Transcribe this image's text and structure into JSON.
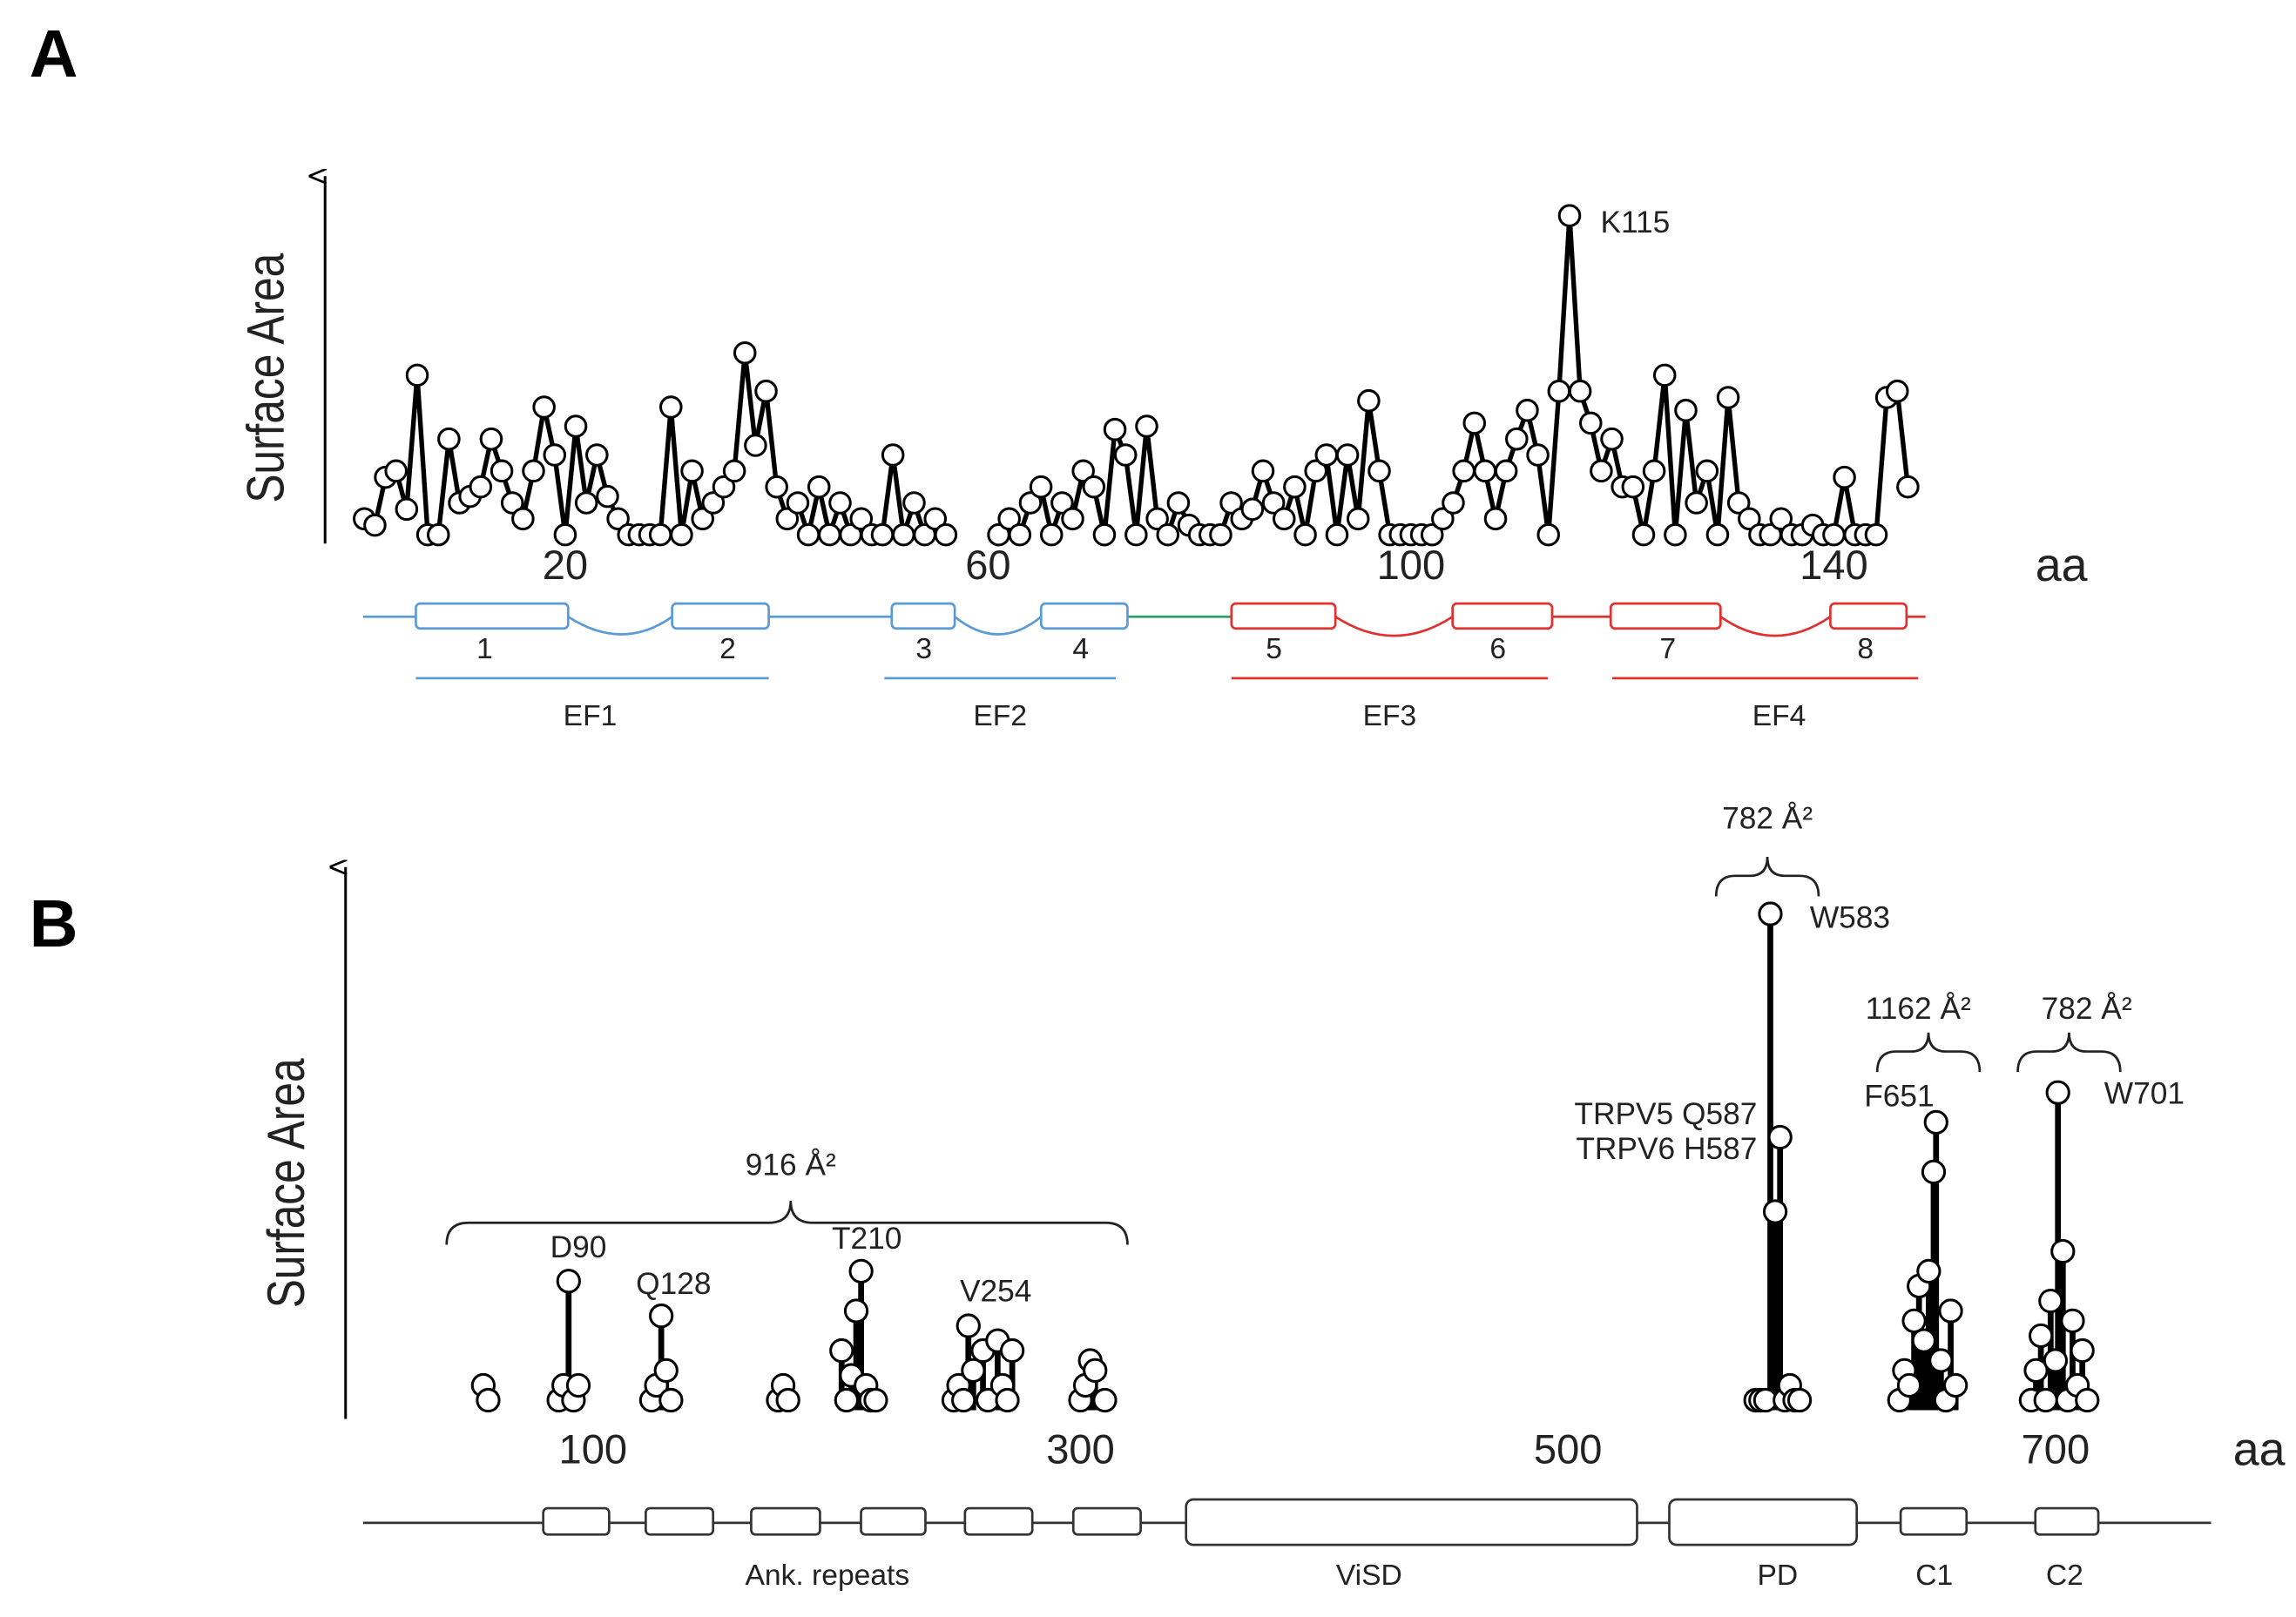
{
  "chart_data": [
    {
      "type": "line",
      "label": "A",
      "ylabel": "Surface Area",
      "xlabel": "aa",
      "x": [
        1,
        2,
        3,
        4,
        5,
        6,
        7,
        8,
        9,
        10,
        11,
        12,
        13,
        14,
        15,
        16,
        17,
        18,
        19,
        20,
        21,
        22,
        23,
        24,
        25,
        26,
        27,
        28,
        29,
        30,
        31,
        32,
        33,
        34,
        35,
        36,
        37,
        38,
        39,
        40,
        41,
        42,
        43,
        44,
        45,
        46,
        47,
        48,
        49,
        50,
        51,
        52,
        53,
        54,
        55,
        56,
        57,
        58,
        59,
        60,
        61,
        62,
        63,
        64,
        65,
        66,
        67,
        68,
        69,
        70,
        71,
        72,
        73,
        74,
        75,
        76,
        77,
        78,
        79,
        80,
        81,
        82,
        83,
        84,
        85,
        86,
        87,
        88,
        89,
        90,
        91,
        92,
        93,
        94,
        95,
        96,
        97,
        98,
        99,
        100,
        101,
        102,
        103,
        104,
        105,
        106,
        107,
        108,
        109,
        110,
        111,
        112,
        113,
        114,
        115,
        116,
        117,
        118,
        119,
        120,
        121,
        122,
        123,
        124,
        125,
        126,
        127,
        128,
        129,
        130,
        131,
        132,
        133,
        134,
        135,
        136,
        137,
        138,
        139,
        140,
        141,
        142,
        143,
        144,
        145,
        146,
        147
      ],
      "series": [
        {
          "color": "#000000",
          "values": [
            5,
            3,
            18,
            20,
            8,
            50,
            0,
            0,
            30,
            10,
            12,
            15,
            30,
            20,
            10,
            5,
            20,
            40,
            25,
            0,
            34,
            10,
            25,
            12,
            5,
            0,
            0,
            0,
            0,
            40,
            0,
            20,
            5,
            10,
            15,
            20,
            57,
            28,
            45,
            15,
            5,
            10,
            0,
            15,
            0,
            10,
            0,
            5,
            0,
            0,
            25,
            0,
            10,
            0,
            5,
            0,
            null,
            null,
            null,
            null,
            0,
            5,
            0,
            10,
            15,
            0,
            10,
            5,
            20,
            15,
            0,
            33,
            25,
            0,
            34,
            5,
            0,
            10,
            3,
            0,
            0,
            0,
            10,
            5,
            8,
            20,
            10,
            5,
            15,
            0,
            20,
            25,
            0,
            25,
            5,
            42,
            20,
            0,
            0,
            0,
            0,
            0,
            5,
            10,
            20,
            35,
            20,
            5,
            20,
            30,
            39,
            25,
            0,
            45,
            100,
            45,
            35,
            20,
            30,
            15,
            15,
            0,
            20,
            50,
            0,
            39,
            10,
            20,
            0,
            43,
            10,
            5,
            0,
            0,
            5,
            0,
            0,
            3,
            0,
            0,
            18,
            0,
            0,
            0,
            43,
            45,
            15
          ]
        }
      ],
      "xlim": [
        0,
        150
      ],
      "xticks": [
        20,
        60,
        100,
        140
      ],
      "ylim": [
        0,
        100
      ],
      "annotations": [
        "K115"
      ],
      "segments": [
        "1",
        "2",
        "3",
        "4",
        "5",
        "6",
        "7",
        "8"
      ],
      "domains": [
        "EF1",
        "EF2",
        "EF3",
        "EF4"
      ]
    },
    {
      "type": "scatter",
      "label": "B",
      "ylabel": "Surface Area",
      "xlabel": "aa",
      "x": [
        55,
        57,
        86,
        88,
        90,
        92,
        94,
        124,
        126,
        128,
        130,
        132,
        176,
        178,
        180,
        202,
        204,
        206,
        208,
        210,
        212,
        214,
        216,
        248,
        250,
        252,
        254,
        256,
        260,
        262,
        266,
        268,
        270,
        272,
        300,
        302,
        304,
        306,
        310,
        577,
        579,
        581,
        583,
        585,
        587,
        589,
        591,
        593,
        595,
        636,
        638,
        640,
        642,
        644,
        646,
        648,
        650,
        651,
        653,
        655,
        657,
        659,
        690,
        692,
        694,
        696,
        698,
        700,
        701,
        703,
        705,
        707,
        709,
        711,
        713
      ],
      "series": [
        {
          "color": "#000000",
          "values": [
            5,
            2,
            2,
            5,
            26,
            2,
            5,
            2,
            5,
            19,
            8,
            2,
            2,
            5,
            2,
            12,
            2,
            7,
            20,
            28,
            5,
            2,
            2,
            2,
            5,
            2,
            17,
            8,
            12,
            2,
            14,
            5,
            2,
            12,
            2,
            5,
            10,
            8,
            2,
            2,
            2,
            2,
            100,
            40,
            55,
            2,
            5,
            2,
            2,
            2,
            8,
            5,
            18,
            25,
            14,
            28,
            48,
            58,
            10,
            2,
            20,
            5,
            2,
            8,
            15,
            2,
            22,
            10,
            64,
            32,
            2,
            18,
            5,
            12,
            2
          ]
        }
      ],
      "xlim": [
        0,
        750
      ],
      "xticks": [
        100,
        300,
        500,
        700
      ],
      "ylim": [
        0,
        100
      ],
      "annotations": [
        "D90",
        "Q128",
        "T210",
        "V254",
        "W583",
        "TRPV5 Q587",
        "TRPV6 H587",
        "F651",
        "W701"
      ],
      "brackets": [
        "916 Å²",
        "782 Å²",
        "1162 Å²",
        "782 Å²"
      ],
      "domains": [
        "Ank. repeats",
        "ViSD",
        "PD",
        "C1",
        "C2"
      ]
    }
  ]
}
